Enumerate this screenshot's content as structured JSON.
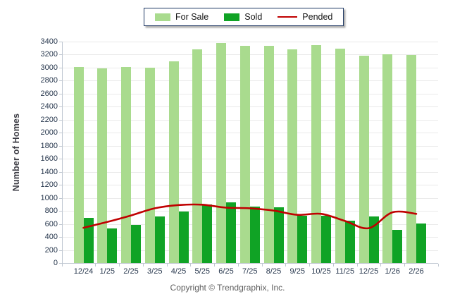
{
  "legend": {
    "items": [
      {
        "id": "for-sale",
        "label": "For Sale",
        "swatch": "bar",
        "color": "#a9db8e"
      },
      {
        "id": "sold",
        "label": "Sold",
        "swatch": "bar",
        "color": "#10a325"
      },
      {
        "id": "pended",
        "label": "Pended",
        "swatch": "line",
        "color": "#c00000"
      }
    ]
  },
  "footer": {
    "text": "Copyright © Trendgraphix, Inc."
  },
  "chart_data": {
    "type": "bar",
    "title": "",
    "xlabel": "",
    "ylabel": "Number of Homes",
    "ylim": [
      0,
      3400
    ],
    "ytick_step": 200,
    "grid": true,
    "legend_position": "top-center",
    "categories": [
      "12/24",
      "1/25",
      "2/25",
      "3/25",
      "4/25",
      "5/25",
      "6/25",
      "7/25",
      "8/25",
      "9/25",
      "10/25",
      "11/25",
      "12/25",
      "1/26",
      "2/26"
    ],
    "series": [
      {
        "name": "For Sale",
        "type": "bar",
        "color": "#a9db8e",
        "values": [
          3015,
          2985,
          3005,
          3000,
          3095,
          3280,
          3380,
          3335,
          3335,
          3285,
          3350,
          3290,
          3185,
          3210,
          3190
        ]
      },
      {
        "name": "Sold",
        "type": "bar",
        "color": "#10a325",
        "values": [
          690,
          535,
          590,
          720,
          790,
          895,
          935,
          870,
          855,
          730,
          730,
          650,
          710,
          510,
          610
        ]
      },
      {
        "name": "Pended",
        "type": "line",
        "color": "#c00000",
        "values": [
          540,
          630,
          730,
          840,
          890,
          895,
          850,
          840,
          805,
          740,
          755,
          645,
          535,
          778,
          755
        ]
      }
    ]
  }
}
